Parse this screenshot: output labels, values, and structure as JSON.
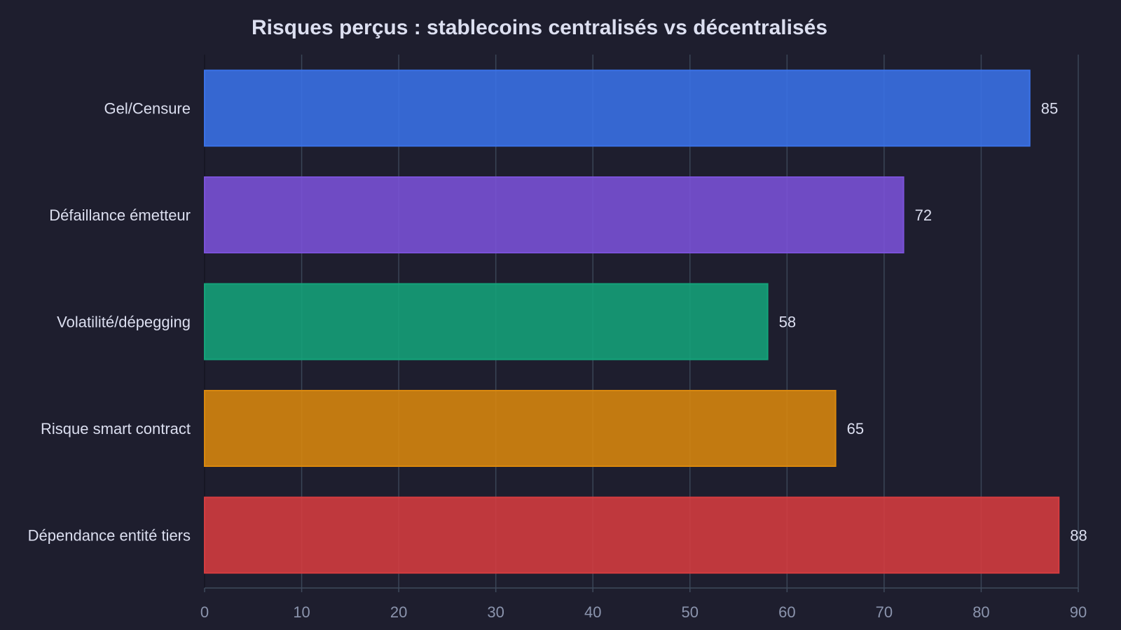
{
  "chart_data": {
    "type": "bar",
    "orientation": "horizontal",
    "title": "Risques perçus : stablecoins centralisés vs décentralisés",
    "xlabel": "",
    "ylabel": "",
    "categories": [
      "Gel/Censure",
      "Défaillance émetteur",
      "Volatilité/dépegging",
      "Risque smart contract",
      "Dépendance entité tiers"
    ],
    "values": [
      85,
      72,
      58,
      65,
      88
    ],
    "colors": [
      "#3a72e8",
      "#7b52d9",
      "#14a37a",
      "#d9880e",
      "#d63c40"
    ],
    "xlim": [
      0,
      90
    ],
    "xticks": [
      0,
      10,
      20,
      30,
      40,
      50,
      60,
      70,
      80,
      90
    ],
    "grid": true,
    "legend": "none"
  }
}
